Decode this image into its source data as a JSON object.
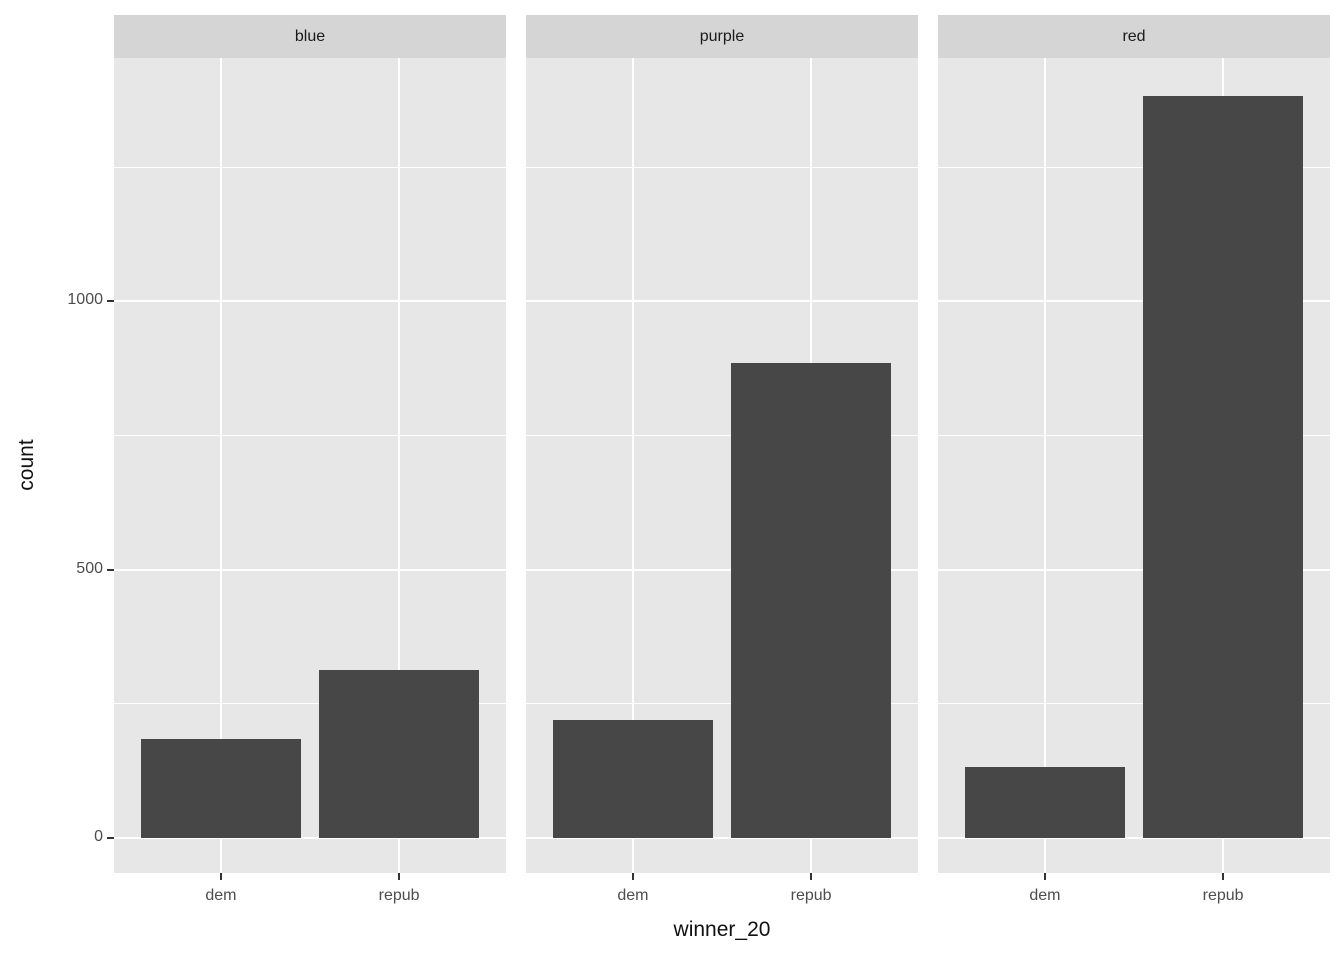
{
  "chart_data": {
    "type": "bar",
    "title": "",
    "xlabel": "winner_20",
    "ylabel": "count",
    "categories": [
      "dem",
      "repub"
    ],
    "facets": [
      {
        "label": "blue",
        "values": [
          183,
          312
        ]
      },
      {
        "label": "purple",
        "values": [
          220,
          885
        ]
      },
      {
        "label": "red",
        "values": [
          132,
          1383
        ]
      }
    ],
    "yticks": [
      0,
      500,
      1000
    ],
    "ytick_labels": [
      "0",
      "500",
      "1000"
    ],
    "yticks_minor": [
      250,
      750,
      1250
    ],
    "ylim": [
      -66,
      1454
    ],
    "grid": "on",
    "legend": "none",
    "colors": {
      "bar_fill": "#474747",
      "panel_background": "#e7e7e7",
      "strip_background": "#d5d5d5",
      "gridline": "#ffffff",
      "axis_text": "#4d4d4d",
      "strip_text": "#1a1a1a",
      "axis_title": "#111111",
      "tick_mark": "#333333",
      "figure_background": "#ffffff"
    }
  }
}
